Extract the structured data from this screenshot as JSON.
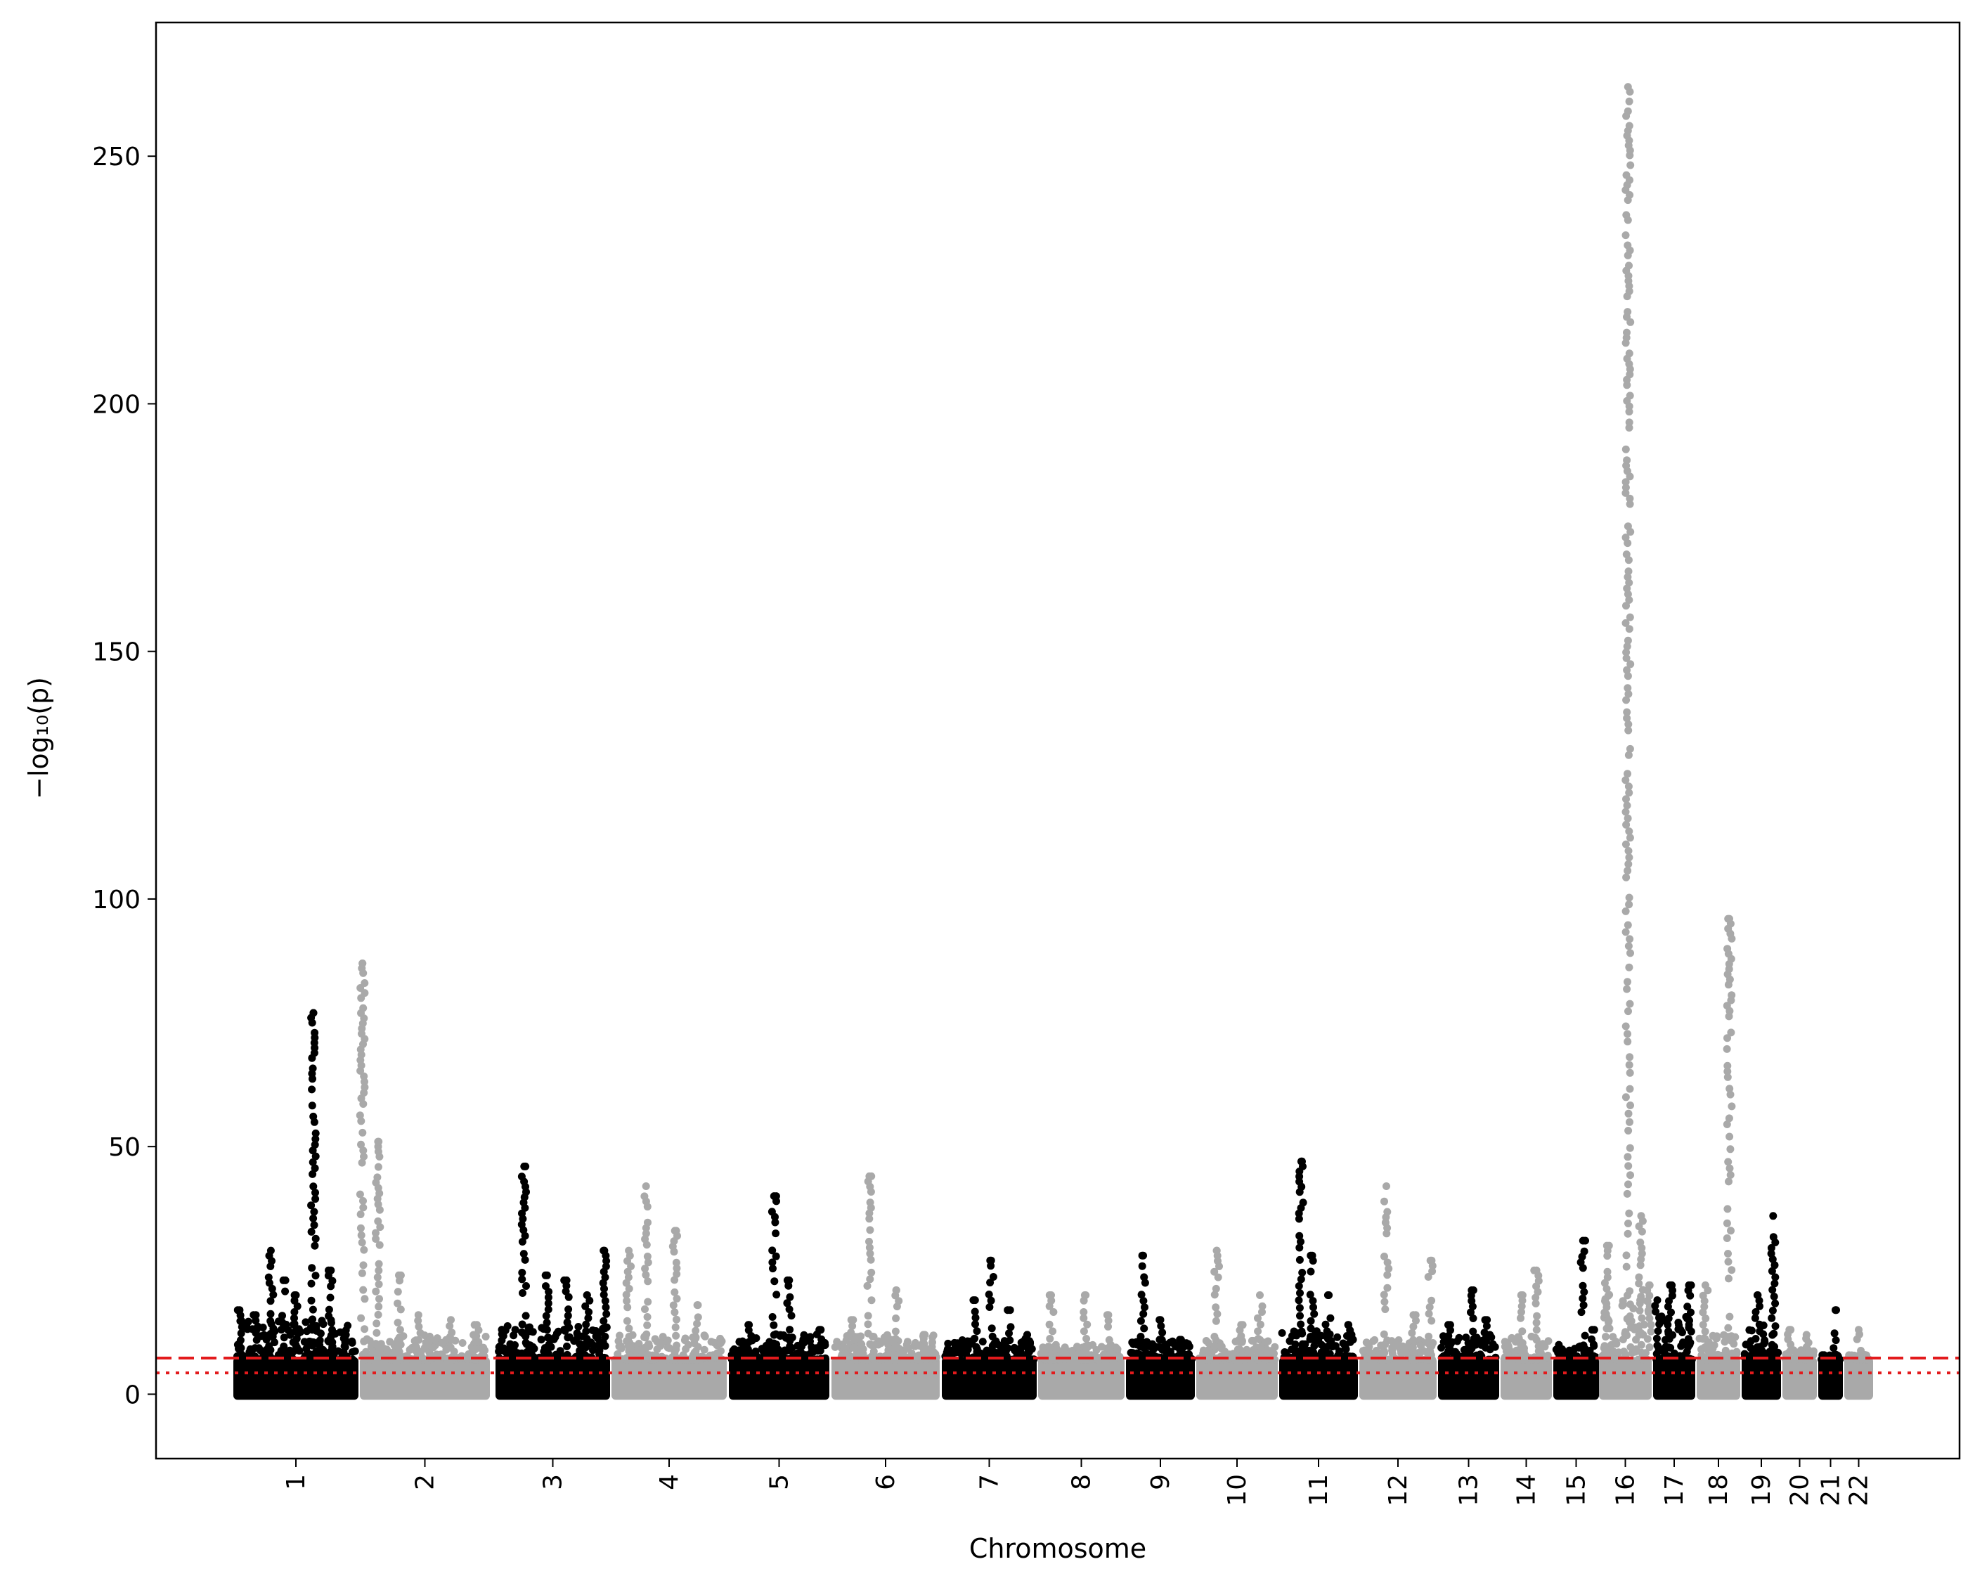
{
  "chart_data": {
    "type": "scatter",
    "subtype": "manhattan",
    "title": "",
    "xlabel": "Chromosome",
    "ylabel": "−log₁₀(p)",
    "ylim": [
      -13,
      277
    ],
    "yticks": [
      0,
      50,
      100,
      150,
      200,
      250
    ],
    "grid": false,
    "colors": {
      "odd": "#000000",
      "even": "#a9a9a9",
      "threshold": "#e31a1c"
    },
    "thresholds": [
      {
        "value": 7.3,
        "style": "dashed"
      },
      {
        "value": 4.3,
        "style": "dotted"
      }
    ],
    "chromosomes": [
      {
        "label": "1",
        "baseline": 15,
        "peaks": [
          [
            0.05,
            17
          ],
          [
            0.18,
            16
          ],
          [
            0.3,
            29
          ],
          [
            0.4,
            23
          ],
          [
            0.5,
            20
          ],
          [
            0.64,
            77
          ],
          [
            0.78,
            25
          ],
          [
            0.9,
            12
          ]
        ]
      },
      {
        "label": "2",
        "baseline": 12,
        "peaks": [
          [
            0.02,
            87
          ],
          [
            0.14,
            51
          ],
          [
            0.3,
            24
          ],
          [
            0.45,
            16
          ],
          [
            0.7,
            15
          ],
          [
            0.9,
            14
          ]
        ]
      },
      {
        "label": "3",
        "baseline": 14,
        "peaks": [
          [
            0.25,
            46
          ],
          [
            0.45,
            24
          ],
          [
            0.62,
            23
          ],
          [
            0.8,
            20
          ],
          [
            0.95,
            29
          ]
        ]
      },
      {
        "label": "4",
        "baseline": 12,
        "peaks": [
          [
            0.15,
            29
          ],
          [
            0.3,
            42
          ],
          [
            0.55,
            33
          ],
          [
            0.75,
            18
          ]
        ]
      },
      {
        "label": "5",
        "baseline": 12,
        "peaks": [
          [
            0.2,
            14
          ],
          [
            0.45,
            40
          ],
          [
            0.6,
            23
          ],
          [
            0.9,
            13
          ]
        ]
      },
      {
        "label": "6",
        "baseline": 12,
        "peaks": [
          [
            0.2,
            15
          ],
          [
            0.35,
            44
          ],
          [
            0.6,
            21
          ],
          [
            0.85,
            12
          ]
        ]
      },
      {
        "label": "7",
        "baseline": 11,
        "peaks": [
          [
            0.35,
            19
          ],
          [
            0.52,
            27
          ],
          [
            0.72,
            17
          ],
          [
            0.9,
            12
          ]
        ]
      },
      {
        "label": "8",
        "baseline": 10,
        "peaks": [
          [
            0.15,
            20
          ],
          [
            0.55,
            20
          ],
          [
            0.8,
            16
          ]
        ]
      },
      {
        "label": "9",
        "baseline": 11,
        "peaks": [
          [
            0.25,
            28
          ],
          [
            0.5,
            15
          ],
          [
            0.8,
            11
          ]
        ]
      },
      {
        "label": "10",
        "baseline": 11,
        "peaks": [
          [
            0.25,
            29
          ],
          [
            0.55,
            14
          ],
          [
            0.78,
            20
          ]
        ]
      },
      {
        "label": "11",
        "baseline": 13,
        "peaks": [
          [
            0.28,
            47
          ],
          [
            0.42,
            28
          ],
          [
            0.62,
            20
          ],
          [
            0.88,
            14
          ]
        ]
      },
      {
        "label": "12",
        "baseline": 11,
        "peaks": [
          [
            0.35,
            42
          ],
          [
            0.7,
            16
          ],
          [
            0.92,
            27
          ]
        ]
      },
      {
        "label": "13",
        "baseline": 12,
        "peaks": [
          [
            0.2,
            14
          ],
          [
            0.55,
            21
          ],
          [
            0.8,
            15
          ]
        ]
      },
      {
        "label": "14",
        "baseline": 12,
        "peaks": [
          [
            0.4,
            20
          ],
          [
            0.7,
            25
          ]
        ]
      },
      {
        "label": "15",
        "baseline": 10,
        "peaks": [
          [
            0.65,
            31
          ],
          [
            0.85,
            13
          ]
        ]
      },
      {
        "label": "16",
        "baseline": 20,
        "peaks": [
          [
            0.15,
            30
          ],
          [
            0.55,
            264
          ],
          [
            0.8,
            36
          ],
          [
            0.95,
            22
          ]
        ]
      },
      {
        "label": "17",
        "baseline": 16,
        "peaks": [
          [
            0.1,
            19
          ],
          [
            0.4,
            22
          ],
          [
            0.85,
            22
          ]
        ]
      },
      {
        "label": "18",
        "baseline": 12,
        "peaks": [
          [
            0.2,
            22
          ],
          [
            0.75,
            96
          ]
        ]
      },
      {
        "label": "19",
        "baseline": 14,
        "peaks": [
          [
            0.4,
            20
          ],
          [
            0.8,
            36
          ]
        ]
      },
      {
        "label": "20",
        "baseline": 9,
        "peaks": [
          [
            0.2,
            13
          ],
          [
            0.7,
            12
          ]
        ]
      },
      {
        "label": "21",
        "baseline": 8,
        "peaks": [
          [
            0.7,
            17
          ]
        ]
      },
      {
        "label": "22",
        "baseline": 8,
        "peaks": [
          [
            0.5,
            13
          ]
        ]
      }
    ]
  }
}
